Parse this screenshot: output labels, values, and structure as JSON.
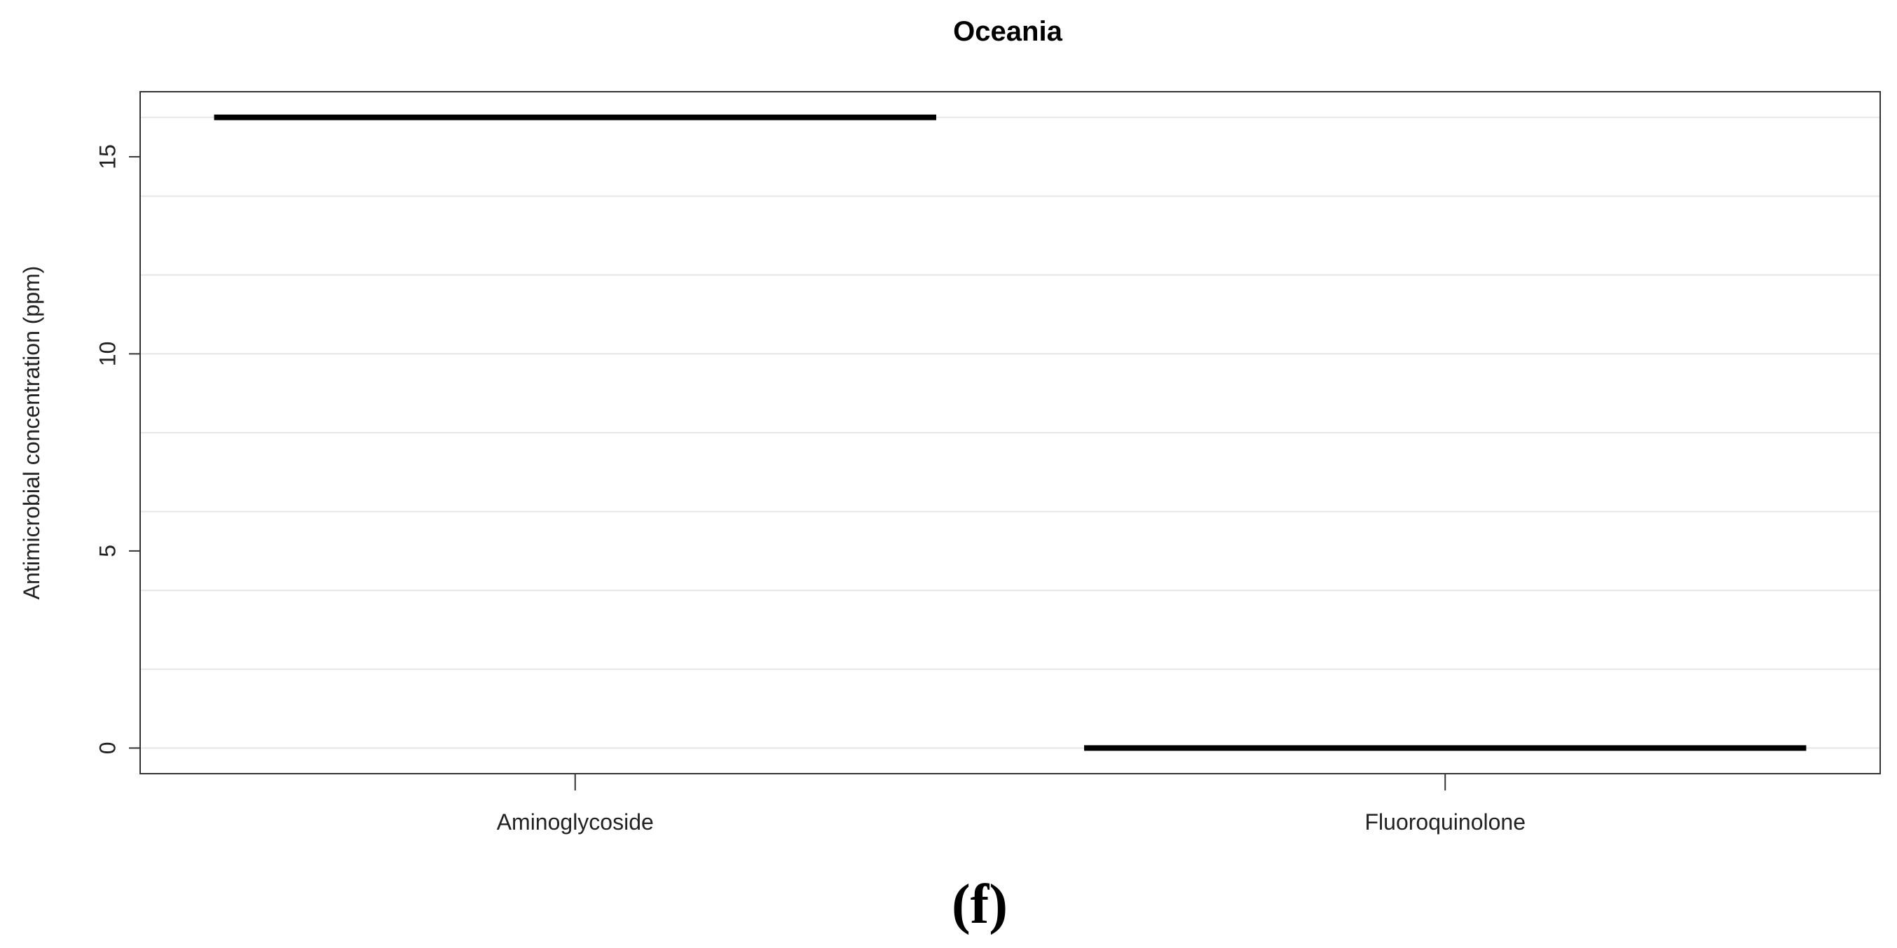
{
  "chart_data": {
    "type": "box",
    "title": "Oceania",
    "xlabel": "",
    "ylabel": "Antimicrobial  concentration (ppm)",
    "categories": [
      "Aminoglycoside",
      "Fluoroquinolone"
    ],
    "values": [
      16,
      0
    ],
    "ylim": [
      -0.65,
      16.65
    ],
    "yticks": [
      0,
      5,
      10,
      15
    ],
    "ytick_labels": [
      "0",
      "5",
      "10",
      "15"
    ],
    "minor_gridlines": [
      0,
      2,
      4,
      6,
      8,
      10,
      12,
      14,
      16
    ],
    "grid": true,
    "legend": "none"
  },
  "panel_label": "(f)",
  "colors": {
    "mark": "#000000",
    "grid": "#e6e6e6",
    "frame": "#333333"
  }
}
